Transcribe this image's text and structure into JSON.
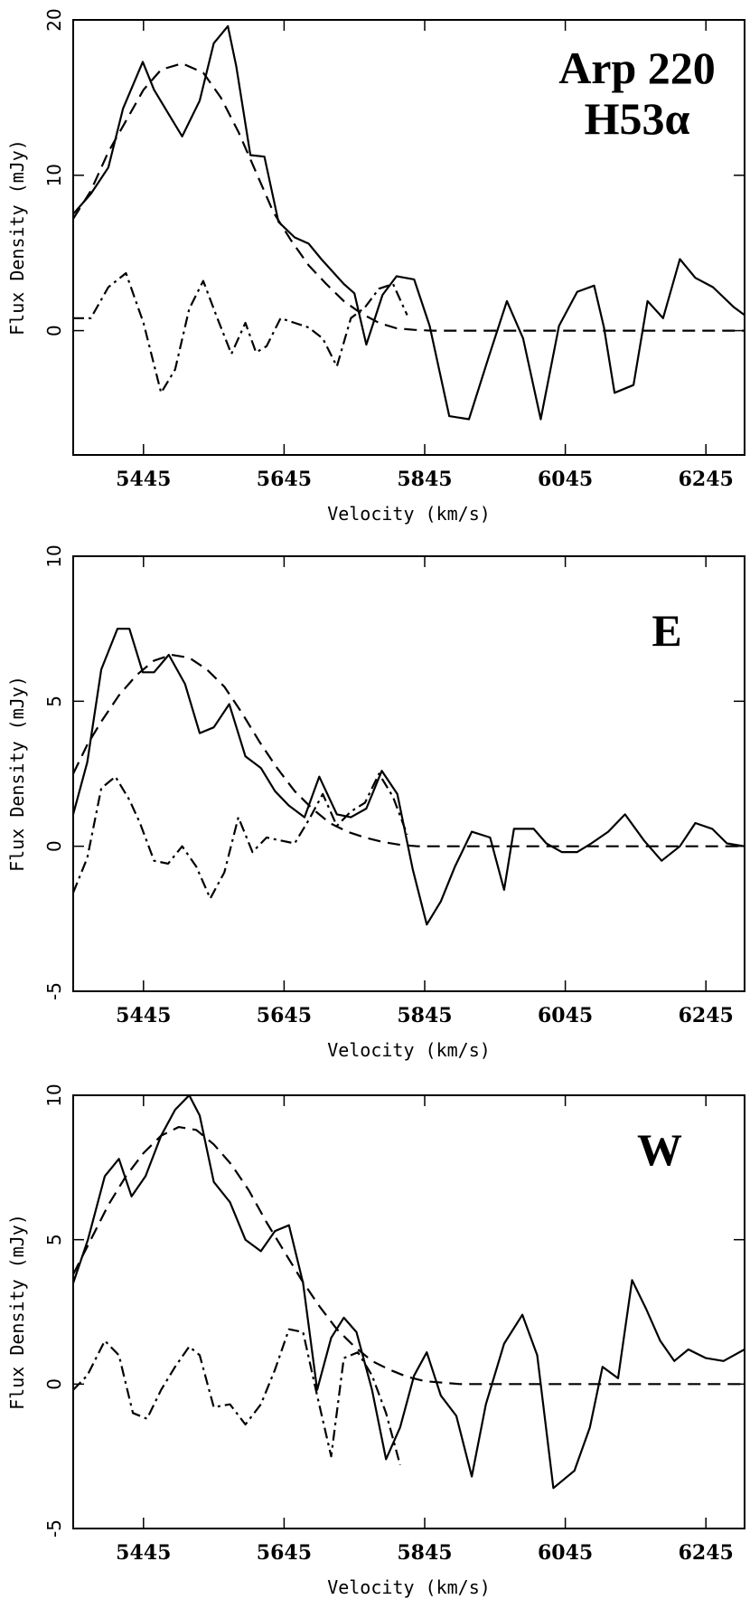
{
  "chart_data": [
    {
      "type": "line",
      "title": "Arp 220",
      "subtitle": "H53α",
      "xlabel": "Velocity (km/s)",
      "ylabel": "Flux Density (mJy)",
      "xlim": [
        5345,
        6300
      ],
      "ylim": [
        -8,
        20
      ],
      "xticks": [
        5445,
        5645,
        5845,
        6045,
        6245
      ],
      "yticks": [
        0,
        10,
        20
      ],
      "grid": false,
      "series": [
        {
          "style": "solid",
          "x": [
            5345,
            5370,
            5395,
            5416,
            5444,
            5460,
            5480,
            5500,
            5525,
            5545,
            5565,
            5577,
            5597,
            5617,
            5637,
            5660,
            5680,
            5698,
            5730,
            5745,
            5762,
            5785,
            5805,
            5830,
            5852,
            5880,
            5908,
            5936,
            5962,
            5985,
            6010,
            6036,
            6062,
            6086,
            6100,
            6115,
            6142,
            6162,
            6184,
            6208,
            6230,
            6255,
            6285,
            6300
          ],
          "y": [
            7.5,
            8.8,
            10.5,
            14.3,
            17.3,
            15.5,
            14.0,
            12.5,
            14.8,
            18.5,
            19.6,
            17.0,
            11.3,
            11.2,
            7.0,
            6.0,
            5.6,
            4.6,
            3.0,
            2.4,
            -0.9,
            2.3,
            3.5,
            3.3,
            0.3,
            -5.5,
            -5.7,
            -1.7,
            1.9,
            -0.5,
            -5.7,
            0.3,
            2.5,
            2.9,
            0.2,
            -4.0,
            -3.5,
            1.9,
            0.8,
            4.6,
            3.4,
            2.8,
            1.5,
            1.0
          ]
        },
        {
          "style": "dashed",
          "x": [
            5345,
            5370,
            5395,
            5420,
            5445,
            5470,
            5500,
            5530,
            5555,
            5580,
            5605,
            5630,
            5655,
            5680,
            5705,
            5730,
            5755,
            5780,
            5805,
            5830,
            5855,
            5880,
            5905,
            5930,
            5955,
            6300
          ],
          "y": [
            7.2,
            9.0,
            11.5,
            13.5,
            15.5,
            16.8,
            17.2,
            16.6,
            15.0,
            12.8,
            10.2,
            7.6,
            5.8,
            4.2,
            3.0,
            1.9,
            1.1,
            0.5,
            0.15,
            0.05,
            0.0,
            0.0,
            0.0,
            0.0,
            0.0,
            0.0
          ]
        },
        {
          "style": "dashdot",
          "x": [
            5345,
            5370,
            5395,
            5420,
            5445,
            5470,
            5490,
            5510,
            5530,
            5550,
            5570,
            5590,
            5605,
            5620,
            5640,
            5660,
            5680,
            5700,
            5720,
            5740,
            5760,
            5780,
            5800,
            5820
          ],
          "y": [
            0.8,
            0.8,
            2.8,
            3.7,
            0.5,
            -4.0,
            -2.5,
            1.4,
            3.2,
            0.8,
            -1.5,
            0.5,
            -1.4,
            -1.0,
            0.8,
            0.5,
            0.2,
            -0.5,
            -2.3,
            0.8,
            1.5,
            2.7,
            3.0,
            1.0
          ]
        }
      ]
    },
    {
      "type": "line",
      "title": "E",
      "xlabel": "Velocity (km/s)",
      "ylabel": "Flux Density (mJy)",
      "xlim": [
        5345,
        6300
      ],
      "ylim": [
        -5,
        10
      ],
      "xticks": [
        5445,
        5645,
        5845,
        6045,
        6245
      ],
      "yticks": [
        -5,
        0,
        5,
        10
      ],
      "grid": false,
      "series": [
        {
          "style": "solid",
          "x": [
            5345,
            5365,
            5385,
            5408,
            5425,
            5444,
            5460,
            5481,
            5504,
            5525,
            5545,
            5567,
            5590,
            5612,
            5632,
            5652,
            5674,
            5695,
            5720,
            5740,
            5762,
            5784,
            5806,
            5828,
            5848,
            5868,
            5888,
            5912,
            5938,
            5958,
            5972,
            6000,
            6018,
            6040,
            6062,
            6082,
            6106,
            6130,
            6157,
            6182,
            6208,
            6230,
            6254,
            6275,
            6300
          ],
          "y": [
            1.1,
            2.9,
            6.1,
            7.5,
            7.5,
            6.0,
            6.0,
            6.6,
            5.6,
            3.9,
            4.1,
            4.9,
            3.1,
            2.7,
            1.9,
            1.4,
            1.0,
            2.4,
            1.1,
            1.0,
            1.3,
            2.6,
            1.8,
            -0.8,
            -2.7,
            -1.9,
            -0.7,
            0.5,
            0.3,
            -1.5,
            0.6,
            0.6,
            0.1,
            -0.2,
            -0.2,
            0.1,
            0.5,
            1.1,
            0.2,
            -0.5,
            0.0,
            0.8,
            0.6,
            0.1,
            0.0
          ]
        },
        {
          "style": "dashed",
          "x": [
            5345,
            5365,
            5385,
            5410,
            5435,
            5460,
            5485,
            5510,
            5535,
            5560,
            5585,
            5610,
            5635,
            5660,
            5685,
            5710,
            5735,
            5760,
            5785,
            5810,
            5835,
            5860,
            6300
          ],
          "y": [
            2.5,
            3.5,
            4.3,
            5.2,
            5.9,
            6.4,
            6.6,
            6.5,
            6.1,
            5.5,
            4.6,
            3.6,
            2.7,
            1.9,
            1.3,
            0.8,
            0.5,
            0.3,
            0.15,
            0.05,
            0.0,
            0.0,
            0.0
          ]
        },
        {
          "style": "dashdot",
          "x": [
            5345,
            5365,
            5385,
            5405,
            5425,
            5440,
            5460,
            5480,
            5500,
            5520,
            5540,
            5560,
            5580,
            5600,
            5620,
            5640,
            5660,
            5680,
            5700,
            5720,
            5740,
            5760,
            5780,
            5800,
            5820
          ],
          "y": [
            -1.6,
            -0.4,
            2.0,
            2.4,
            1.6,
            0.8,
            -0.5,
            -0.6,
            0.0,
            -0.7,
            -1.8,
            -0.9,
            1.0,
            -0.2,
            0.3,
            0.2,
            0.1,
            0.9,
            1.8,
            0.7,
            1.2,
            1.5,
            2.5,
            1.7,
            0.4
          ]
        }
      ]
    },
    {
      "type": "line",
      "title": "W",
      "xlabel": "Velocity (km/s)",
      "ylabel": "Flux Density (mJy)",
      "xlim": [
        5345,
        6300
      ],
      "ylim": [
        -5,
        10
      ],
      "xticks": [
        5445,
        5645,
        5845,
        6045,
        6245
      ],
      "yticks": [
        -5,
        0,
        5,
        10
      ],
      "grid": false,
      "series": [
        {
          "style": "solid",
          "x": [
            5345,
            5366,
            5390,
            5410,
            5428,
            5448,
            5470,
            5490,
            5510,
            5525,
            5545,
            5568,
            5590,
            5612,
            5632,
            5652,
            5672,
            5692,
            5712,
            5730,
            5748,
            5770,
            5790,
            5810,
            5830,
            5848,
            5868,
            5890,
            5912,
            5932,
            5958,
            5984,
            6005,
            6028,
            6058,
            6080,
            6098,
            6120,
            6140,
            6160,
            6180,
            6200,
            6220,
            6245,
            6270,
            6300
          ],
          "y": [
            3.5,
            5.0,
            7.2,
            7.8,
            6.5,
            7.2,
            8.6,
            9.5,
            10.0,
            9.3,
            7.0,
            6.3,
            5.0,
            4.6,
            5.3,
            5.5,
            3.5,
            -0.2,
            1.6,
            2.3,
            1.8,
            -0.2,
            -2.6,
            -1.5,
            0.3,
            1.1,
            -0.4,
            -1.1,
            -3.2,
            -0.7,
            1.4,
            2.4,
            1.0,
            -3.6,
            -3.0,
            -1.5,
            0.6,
            0.2,
            3.6,
            2.6,
            1.5,
            0.8,
            1.2,
            0.9,
            0.8,
            1.2
          ]
        },
        {
          "style": "dashed",
          "x": [
            5345,
            5370,
            5395,
            5420,
            5445,
            5470,
            5495,
            5520,
            5545,
            5570,
            5595,
            5620,
            5645,
            5670,
            5695,
            5720,
            5745,
            5770,
            5795,
            5820,
            5845,
            5870,
            5895,
            5920,
            6300
          ],
          "y": [
            3.8,
            5.0,
            6.2,
            7.2,
            8.0,
            8.6,
            8.9,
            8.8,
            8.3,
            7.6,
            6.7,
            5.6,
            4.6,
            3.6,
            2.7,
            1.9,
            1.3,
            0.8,
            0.5,
            0.25,
            0.1,
            0.05,
            0.0,
            0.0,
            0.0
          ]
        },
        {
          "style": "dashdot",
          "x": [
            5345,
            5365,
            5390,
            5410,
            5430,
            5450,
            5470,
            5490,
            5510,
            5525,
            5545,
            5568,
            5590,
            5612,
            5632,
            5652,
            5672,
            5692,
            5712,
            5730,
            5750,
            5770,
            5790,
            5810
          ],
          "y": [
            -0.2,
            0.3,
            1.5,
            1.0,
            -1.0,
            -1.2,
            -0.2,
            0.6,
            1.3,
            1.0,
            -0.8,
            -0.7,
            -1.4,
            -0.7,
            0.5,
            1.9,
            1.8,
            -0.4,
            -2.5,
            0.9,
            1.1,
            0.3,
            -1.0,
            -2.8
          ]
        }
      ]
    }
  ]
}
